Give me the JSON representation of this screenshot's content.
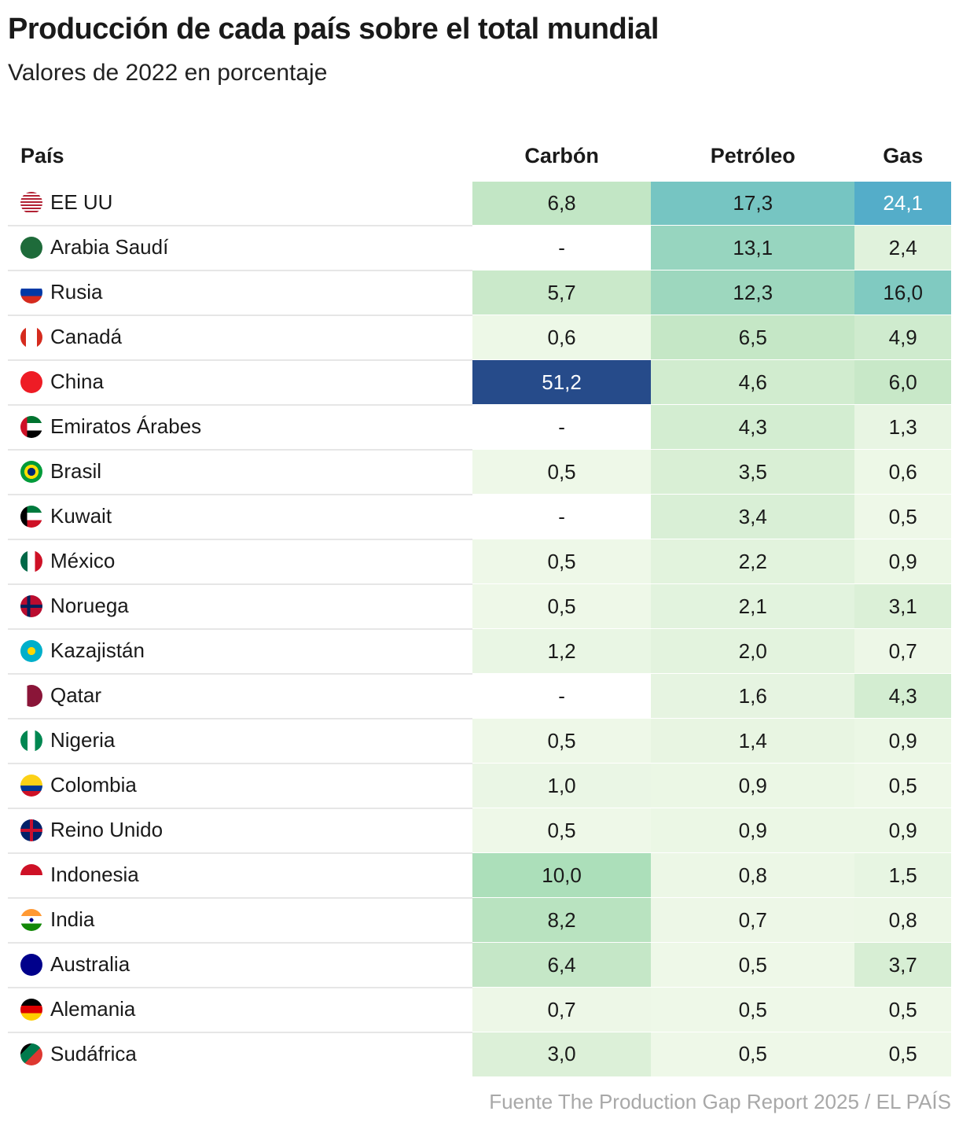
{
  "title": "Producción de cada país sobre el total mundial",
  "subtitle": "Valores de 2022 en porcentaje",
  "source": "Fuente The Production Gap Report 2025 / EL PAÍS",
  "chart_data": {
    "type": "heatmap",
    "columns": [
      "País",
      "Carbón",
      "Petróleo",
      "Gas"
    ],
    "rows": [
      {
        "country": "EE UU",
        "flag": "us-flag",
        "values": [
          "6,8",
          "17,3",
          "24,1"
        ]
      },
      {
        "country": "Arabia Saudí",
        "flag": "saudi-flag",
        "values": [
          "-",
          "13,1",
          "2,4"
        ]
      },
      {
        "country": "Rusia",
        "flag": "russia-flag",
        "values": [
          "5,7",
          "12,3",
          "16,0"
        ]
      },
      {
        "country": "Canadá",
        "flag": "canada-flag",
        "values": [
          "0,6",
          "6,5",
          "4,9"
        ]
      },
      {
        "country": "China",
        "flag": "china-flag",
        "values": [
          "51,2",
          "4,6",
          "6,0"
        ]
      },
      {
        "country": "Emiratos Árabes",
        "flag": "uae-flag",
        "values": [
          "-",
          "4,3",
          "1,3"
        ]
      },
      {
        "country": "Brasil",
        "flag": "brazil-flag",
        "values": [
          "0,5",
          "3,5",
          "0,6"
        ]
      },
      {
        "country": "Kuwait",
        "flag": "kuwait-flag",
        "values": [
          "-",
          "3,4",
          "0,5"
        ]
      },
      {
        "country": "México",
        "flag": "mexico-flag",
        "values": [
          "0,5",
          "2,2",
          "0,9"
        ]
      },
      {
        "country": "Noruega",
        "flag": "norway-flag",
        "values": [
          "0,5",
          "2,1",
          "3,1"
        ]
      },
      {
        "country": "Kazajistán",
        "flag": "kazakhstan-flag",
        "values": [
          "1,2",
          "2,0",
          "0,7"
        ]
      },
      {
        "country": "Qatar",
        "flag": "qatar-flag",
        "values": [
          "-",
          "1,6",
          "4,3"
        ]
      },
      {
        "country": "Nigeria",
        "flag": "nigeria-flag",
        "values": [
          "0,5",
          "1,4",
          "0,9"
        ]
      },
      {
        "country": "Colombia",
        "flag": "colombia-flag",
        "values": [
          "1,0",
          "0,9",
          "0,5"
        ]
      },
      {
        "country": "Reino Unido",
        "flag": "uk-flag",
        "values": [
          "0,5",
          "0,9",
          "0,9"
        ]
      },
      {
        "country": "Indonesia",
        "flag": "indonesia-flag",
        "values": [
          "10,0",
          "0,8",
          "1,5"
        ]
      },
      {
        "country": "India",
        "flag": "india-flag",
        "values": [
          "8,2",
          "0,7",
          "0,8"
        ]
      },
      {
        "country": "Australia",
        "flag": "australia-flag",
        "values": [
          "6,4",
          "0,5",
          "3,7"
        ]
      },
      {
        "country": "Alemania",
        "flag": "germany-flag",
        "values": [
          "0,7",
          "0,5",
          "0,5"
        ]
      },
      {
        "country": "Sudáfrica",
        "flag": "south-africa-flag",
        "values": [
          "3,0",
          "0,5",
          "0,5"
        ]
      }
    ],
    "color_scale": [
      [
        0.5,
        "#eef8e8"
      ],
      [
        3,
        "#dcf0d8"
      ],
      [
        6,
        "#c8e8c8"
      ],
      [
        10,
        "#acdfba"
      ],
      [
        13,
        "#98d5bf"
      ],
      [
        17,
        "#78c6c2"
      ],
      [
        24,
        "#54adc9"
      ],
      [
        51,
        "#264b8a"
      ]
    ]
  }
}
